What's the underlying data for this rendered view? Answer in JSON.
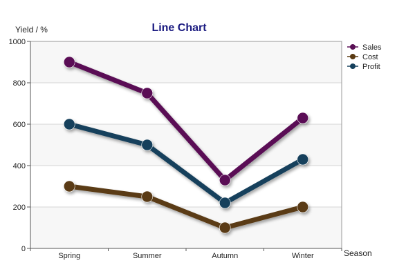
{
  "chart_data": {
    "type": "line",
    "title": "Line Chart",
    "xlabel": "Season",
    "ylabel": "Yield / %",
    "categories": [
      "Spring",
      "Summer",
      "Autumn",
      "Winter"
    ],
    "ylim": [
      0,
      1000
    ],
    "yticks": [
      "0",
      "200",
      "400",
      "600",
      "800",
      "1000"
    ],
    "grid": true,
    "legend_position": "top-right",
    "series": [
      {
        "name": "Sales",
        "values": [
          900,
          750,
          330,
          630
        ],
        "color": "#5a1055"
      },
      {
        "name": "Cost",
        "values": [
          300,
          250,
          100,
          200
        ],
        "color": "#5a3a12"
      },
      {
        "name": "Profit",
        "values": [
          600,
          500,
          220,
          430
        ],
        "color": "#15405c"
      }
    ]
  }
}
